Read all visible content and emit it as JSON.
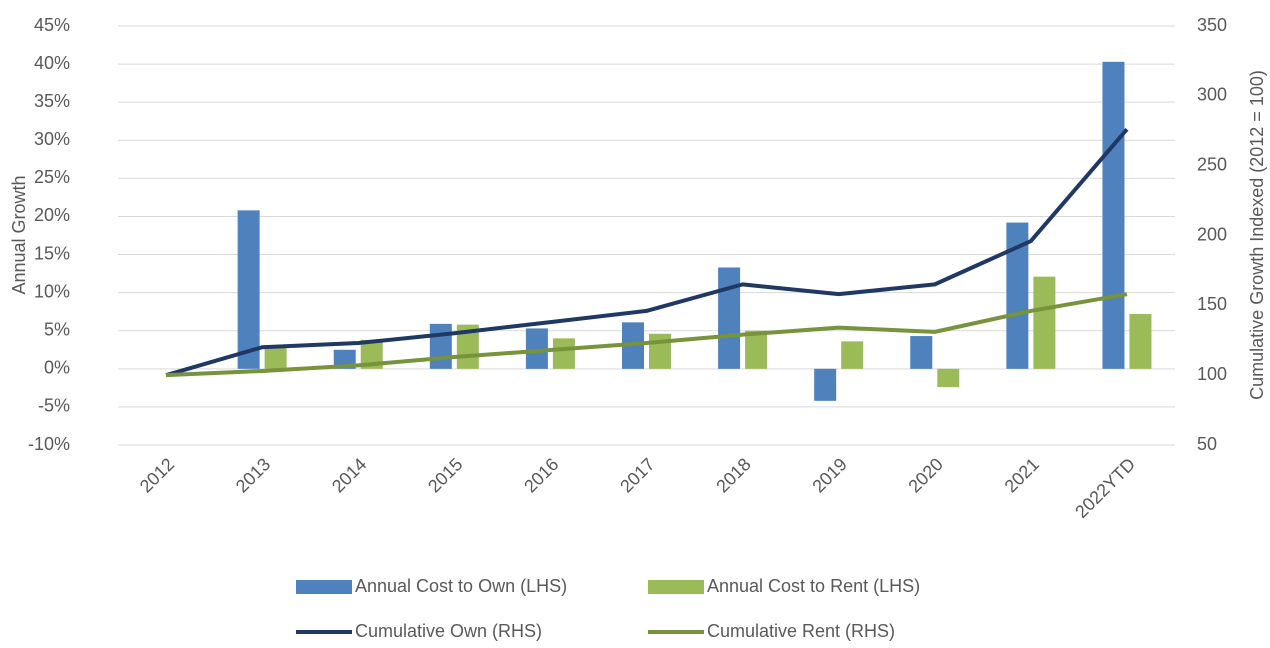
{
  "chart_data": {
    "type": "bar",
    "y_label": "Annual Growth",
    "y2_label": "Cumulative Growth Indexed (2012 = 100)",
    "categories": [
      "2012",
      "2013",
      "2014",
      "2015",
      "2016",
      "2017",
      "2018",
      "2019",
      "2020",
      "2021",
      "2022YTD"
    ],
    "series": [
      {
        "name": "Annual Cost to Own (LHS)",
        "type": "bar",
        "color": "#4f81bd",
        "values": [
          null,
          20.8,
          2.5,
          5.9,
          5.3,
          6.1,
          13.3,
          -4.2,
          4.3,
          19.2,
          40.3
        ]
      },
      {
        "name": "Annual Cost to Rent (LHS)",
        "type": "bar",
        "color": "#9bbb59",
        "values": [
          null,
          3.0,
          3.8,
          5.8,
          4.0,
          4.6,
          5.0,
          3.6,
          -2.4,
          12.1,
          7.2
        ]
      },
      {
        "name": "Cumulative Own (RHS)",
        "type": "line",
        "axis": "y2",
        "color": "#1f3864",
        "values": [
          100,
          120,
          123,
          130,
          138,
          146,
          165,
          158,
          165,
          196,
          276
        ]
      },
      {
        "name": "Cumulative Rent (RHS)",
        "type": "line",
        "axis": "y2",
        "color": "#77933c",
        "values": [
          100,
          103,
          107,
          113,
          118,
          123,
          129,
          134,
          131,
          146,
          158
        ]
      }
    ],
    "ylim": [
      -10,
      45
    ],
    "yticks": [
      {
        "value": -10,
        "label": "-10%"
      },
      {
        "value": -5,
        "label": "-5%"
      },
      {
        "value": 0,
        "label": "0%"
      },
      {
        "value": 5,
        "label": "5%"
      },
      {
        "value": 10,
        "label": "10%"
      },
      {
        "value": 15,
        "label": "15%"
      },
      {
        "value": 20,
        "label": "20%"
      },
      {
        "value": 25,
        "label": "25%"
      },
      {
        "value": 30,
        "label": "30%"
      },
      {
        "value": 35,
        "label": "35%"
      },
      {
        "value": 40,
        "label": "40%"
      },
      {
        "value": 45,
        "label": "45%"
      }
    ],
    "y2lim": [
      50,
      350
    ],
    "y2ticks": [
      50,
      100,
      150,
      200,
      250,
      300,
      350
    ],
    "grid": true
  }
}
